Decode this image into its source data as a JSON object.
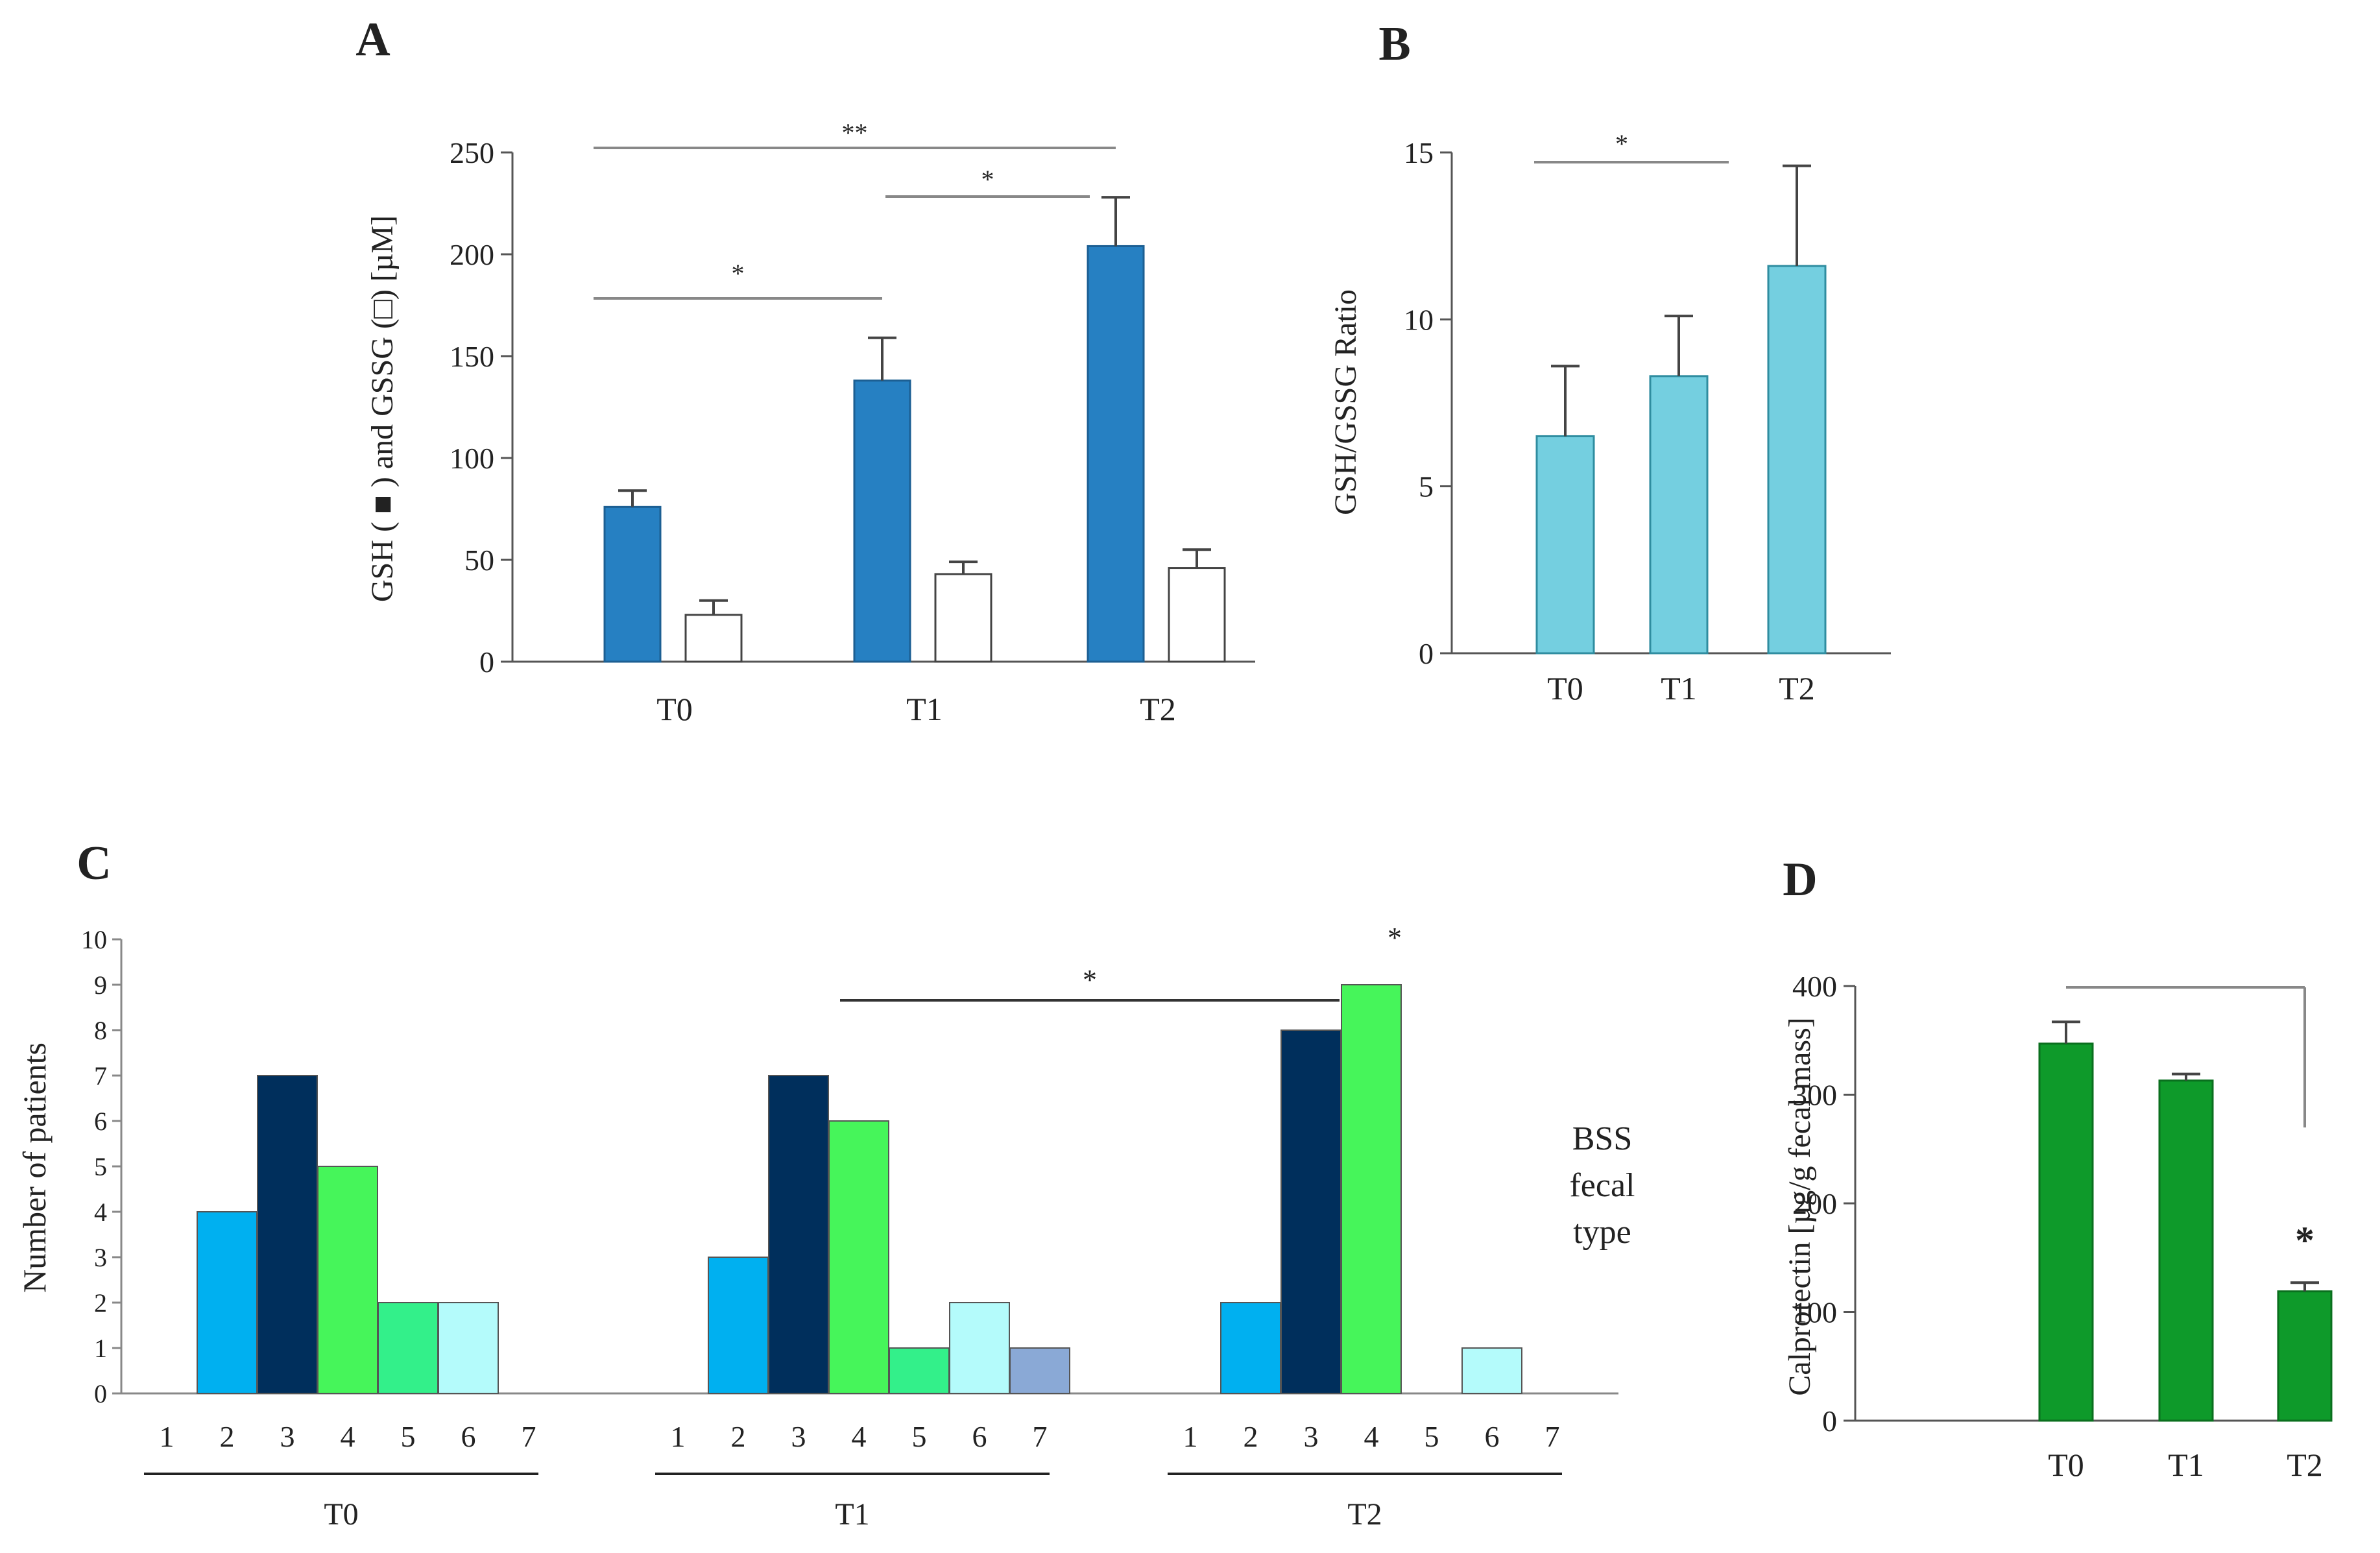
{
  "figure_panels": [
    "A",
    "B",
    "C",
    "D"
  ],
  "chart_data": [
    {
      "panel": "A",
      "type": "bar",
      "ylabel": "GSH ( ■ ) and GSSG (□) [µM]",
      "categories": [
        "T0",
        "T1",
        "T2"
      ],
      "ylim": [
        0,
        250
      ],
      "yticks": [
        0,
        50,
        100,
        150,
        200,
        250
      ],
      "series": [
        {
          "values": [
            76,
            138,
            204
          ],
          "errors": [
            8,
            21,
            24
          ],
          "fill": "#2680c2"
        },
        {
          "values": [
            23,
            43,
            46
          ],
          "errors": [
            7,
            6,
            9
          ],
          "fill": "#ffffff"
        }
      ],
      "significance": [
        {
          "from": "T0",
          "to": "T1",
          "label": "*"
        },
        {
          "from": "T1",
          "to": "T2",
          "label": "*"
        },
        {
          "from": "T0",
          "to": "T2",
          "label": "**"
        }
      ]
    },
    {
      "panel": "B",
      "type": "bar",
      "ylabel": "GSH/GSSG Ratio",
      "categories": [
        "T0",
        "T1",
        "T2"
      ],
      "ylim": [
        0,
        15
      ],
      "yticks": [
        0,
        5,
        10,
        15
      ],
      "values": [
        6.5,
        8.3,
        11.6
      ],
      "errors": [
        2.1,
        1.8,
        3.0
      ],
      "fill": "#74cfe0",
      "significance": [
        {
          "from": "T0",
          "to": "T1",
          "label": "*"
        }
      ]
    },
    {
      "panel": "C",
      "type": "bar",
      "ylabel": "Number of patients",
      "ylim": [
        0,
        10
      ],
      "yticks": [
        0,
        1,
        2,
        3,
        4,
        5,
        6,
        7,
        8,
        9,
        10
      ],
      "legend_text": [
        "BSS",
        "fecal",
        "type"
      ],
      "type_labels": [
        "1",
        "2",
        "3",
        "4",
        "5",
        "6",
        "7"
      ],
      "type_colors": [
        "#00b0f0",
        "#00b0f0",
        "#002f5c",
        "#46f55a",
        "#33f08a",
        "#b4fbfb",
        "#8aa9d6"
      ],
      "groups": [
        {
          "name": "T0",
          "values": [
            0,
            4,
            7,
            5,
            2,
            2,
            0
          ]
        },
        {
          "name": "T1",
          "values": [
            0,
            3,
            7,
            6,
            1,
            2,
            1
          ]
        },
        {
          "name": "T2",
          "values": [
            0,
            2,
            8,
            9,
            0,
            1,
            0
          ]
        }
      ],
      "significance": [
        {
          "label": "*",
          "note": "T1 type 3 vs T2 type 3"
        },
        {
          "label": "*",
          "note": "T2 type 4"
        }
      ]
    },
    {
      "panel": "D",
      "type": "bar",
      "ylabel": "Calprotectin [µg/g fecal mass]",
      "categories": [
        "T0",
        "T1",
        "T2"
      ],
      "ylim": [
        0,
        400
      ],
      "yticks": [
        0,
        100,
        200,
        300,
        400
      ],
      "values": [
        347,
        313,
        119
      ],
      "errors": [
        20,
        6,
        8
      ],
      "fill": "#0e9a2a",
      "significance": [
        {
          "from": "T0",
          "to": "T2",
          "label": "*"
        }
      ]
    }
  ]
}
